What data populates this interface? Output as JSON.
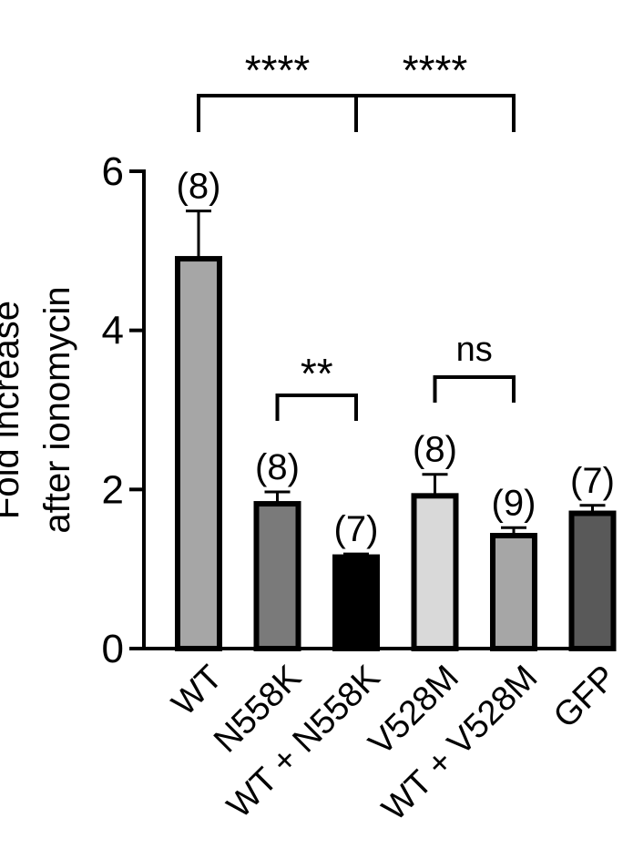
{
  "chart_data": {
    "type": "bar",
    "ylabel": "Fold increase after ionomycin",
    "ylabel_lines": [
      "Fold increase",
      "after ionomycin"
    ],
    "ylim": [
      0,
      6
    ],
    "yticks": [
      0,
      2,
      4,
      6
    ],
    "ytick_labels": [
      "0",
      "2",
      "4",
      "6"
    ],
    "grid": false,
    "categories": [
      "WT",
      "N558K",
      "WT + N558K",
      "V528M",
      "WT + V528M",
      "GFP"
    ],
    "values": [
      4.9,
      1.82,
      1.15,
      1.92,
      1.42,
      1.7
    ],
    "errors": [
      0.6,
      0.15,
      0.04,
      0.27,
      0.1,
      0.1
    ],
    "n_labels": [
      "(8)",
      "(8)",
      "(7)",
      "(8)",
      "(9)",
      "(7)"
    ],
    "bar_colors": [
      "#a6a6a6",
      "#7a7a7a",
      "#000000",
      "#d9d9d9",
      "#a6a6a6",
      "#595959"
    ],
    "significance": [
      {
        "label": "****",
        "from": "WT",
        "to": "WT + N558K"
      },
      {
        "label": "****",
        "from": "WT + N558K",
        "to": "WT + V528M"
      },
      {
        "label": "**",
        "from": "N558K",
        "to": "WT + N558K"
      },
      {
        "label": "ns",
        "from": "V528M",
        "to": "WT + V528M"
      }
    ]
  }
}
